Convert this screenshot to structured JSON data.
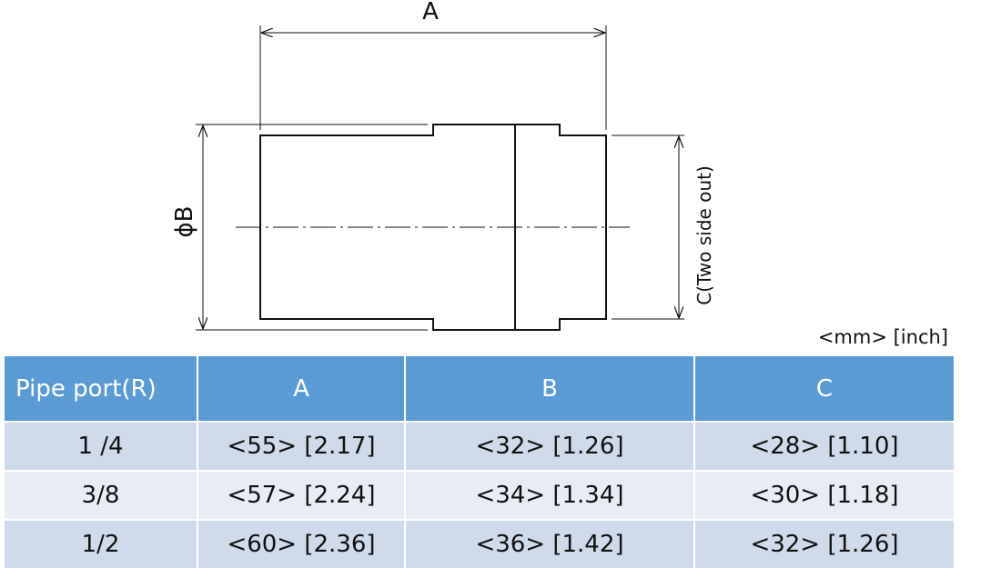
{
  "drawing": {
    "label_a": "A",
    "label_b": "ϕB",
    "label_c": "C(Two side out)"
  },
  "units_label": "<mm> [inch]",
  "table": {
    "headers": [
      "Pipe port(R)",
      "A",
      "B",
      "C"
    ],
    "rows": [
      [
        "1 /4",
        "<55> [2.17]",
        "<32> [1.26]",
        "<28> [1.10]"
      ],
      [
        "3/8",
        "<57> [2.24]",
        "<34> [1.34]",
        "<30> [1.18]"
      ],
      [
        "1/2",
        "<60> [2.36]",
        "<36> [1.42]",
        "<32> [1.26]"
      ]
    ]
  },
  "colors": {
    "header_bg": "#5b9bd5",
    "row_odd_bg": "#cfdaea",
    "row_even_bg": "#e8edf5"
  }
}
